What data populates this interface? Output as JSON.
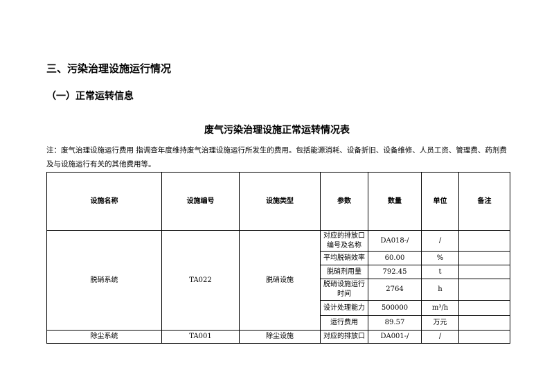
{
  "section_title": "三、污染治理设施运行情况",
  "subsection_title": "（一）正常运转信息",
  "table_title": "废气污染治理设施正常运转情况表",
  "note": "注：废气治理设施运行费用 指调查年度维持废气治理设施运行所发生的费用。包括能源消耗、设备折旧、设备维修、人员工资、管理费、药剂费及与设施运行有关的其他费用等。",
  "headers": [
    "设施名称",
    "设施编号",
    "设施类型",
    "参数",
    "数量",
    "单位",
    "备注"
  ],
  "facilities": [
    {
      "name": "脱硝系统",
      "id": "TA022",
      "type": "脱硝设施",
      "params": [
        {
          "param": "对应的排放口编号及名称",
          "qty": "DA018-/",
          "unit": "/",
          "remark": ""
        },
        {
          "param": "平均脱硝效率",
          "qty": "60.00",
          "unit": "%",
          "remark": ""
        },
        {
          "param": "脱硝剂用量",
          "qty": "792.45",
          "unit": "t",
          "remark": ""
        },
        {
          "param": "脱硝设施运行时间",
          "qty": "2764",
          "unit": "h",
          "remark": ""
        },
        {
          "param": "设计处理能力",
          "qty": "500000",
          "unit": "m³/h",
          "remark": ""
        },
        {
          "param": "运行费用",
          "qty": "89.57",
          "unit": "万元",
          "remark": ""
        }
      ]
    },
    {
      "name": "除尘系统",
      "id": "TA001",
      "type": "除尘设施",
      "params": [
        {
          "param": "对应的排放口",
          "qty": "DA001-/",
          "unit": "/",
          "remark": ""
        }
      ]
    }
  ]
}
